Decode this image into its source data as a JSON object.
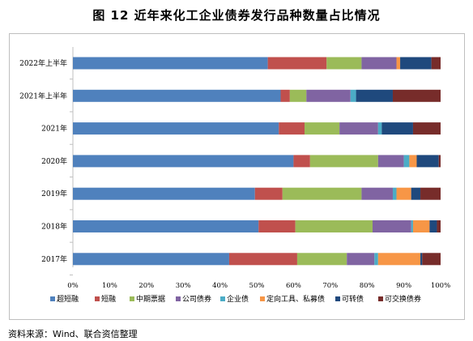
{
  "title": "图 12  近年来化工企业债券发行品种数量占比情况",
  "source": "资料来源：Wind、联合资信整理",
  "chart_data": {
    "type": "bar",
    "orientation": "horizontal",
    "stacked": true,
    "categories": [
      "2022年上半年",
      "2021年上半年",
      "2021年",
      "2020年",
      "2019年",
      "2018年",
      "2017年"
    ],
    "xlim": [
      0,
      100
    ],
    "xticks": [
      "0%",
      "10%",
      "20%",
      "30%",
      "40%",
      "50%",
      "60%",
      "70%",
      "80%",
      "90%",
      "100%"
    ],
    "grid": false,
    "legend_position": "bottom",
    "series": [
      {
        "name": "超短融",
        "color": "#4F81BD",
        "values": [
          53,
          56.5,
          56,
          60,
          49.5,
          50.5,
          42.5
        ]
      },
      {
        "name": "短融",
        "color": "#C0504D",
        "values": [
          16,
          2.5,
          7,
          4.5,
          7.5,
          10,
          18.5
        ]
      },
      {
        "name": "中期票据",
        "color": "#9BBB59",
        "values": [
          9.5,
          4.5,
          9.5,
          18.5,
          21.5,
          21,
          13.5
        ]
      },
      {
        "name": "公司债券",
        "color": "#8064A2",
        "values": [
          9.5,
          12,
          10.5,
          7,
          8.5,
          10.5,
          7.5
        ]
      },
      {
        "name": "企业债",
        "color": "#4BACC6",
        "values": [
          0,
          1.5,
          1,
          1.5,
          1,
          0.5,
          1
        ]
      },
      {
        "name": "定向工具、私募债",
        "color": "#F79646",
        "values": [
          1,
          0,
          0,
          2,
          4,
          4.5,
          11.5
        ]
      },
      {
        "name": "可转债",
        "color": "#1F497D",
        "values": [
          8.5,
          10,
          8.5,
          6,
          2.5,
          2,
          0.5
        ]
      },
      {
        "name": "可交换债券",
        "color": "#772C2A",
        "values": [
          2.5,
          13,
          7.5,
          0.5,
          5.5,
          1,
          5
        ]
      }
    ]
  }
}
